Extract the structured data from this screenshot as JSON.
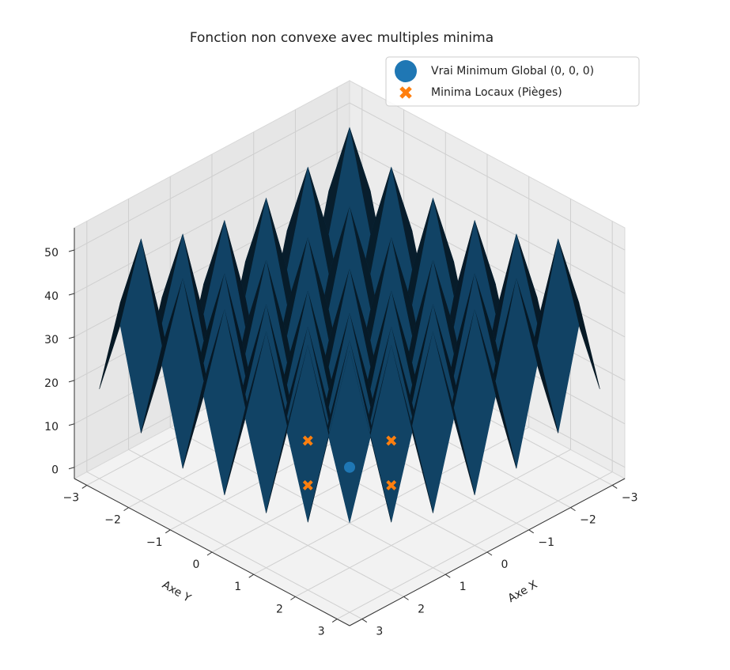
{
  "chart_data": {
    "type": "surface3d",
    "title": "Fonction non convexe avec multiples minima",
    "xlabel": "Axe X",
    "ylabel": "Axe Y",
    "x": [
      -3,
      -2.5,
      -2,
      -1.5,
      -1,
      -0.5,
      0,
      0.5,
      1,
      1.5,
      2,
      2.5,
      3
    ],
    "y": [
      -3,
      -2.5,
      -2,
      -1.5,
      -1,
      -0.5,
      0,
      0.5,
      1,
      1.5,
      2,
      2.5,
      3
    ],
    "z": [
      [
        18,
        35.25,
        13,
        31.25,
        10,
        29.25,
        9,
        29.25,
        10,
        31.25,
        13,
        35.25,
        18
      ],
      [
        35.25,
        52.5,
        30.25,
        48.5,
        27.25,
        46.5,
        26.25,
        46.5,
        27.25,
        48.5,
        30.25,
        52.5,
        35.25
      ],
      [
        13,
        30.25,
        8,
        26.25,
        5,
        24.25,
        4,
        24.25,
        5,
        26.25,
        8,
        30.25,
        13
      ],
      [
        31.25,
        48.5,
        26.25,
        44.5,
        23.25,
        42.5,
        22.25,
        42.5,
        23.25,
        44.5,
        26.25,
        48.5,
        31.25
      ],
      [
        10,
        27.25,
        5,
        23.25,
        2,
        21.25,
        1,
        21.25,
        2,
        23.25,
        5,
        27.25,
        10
      ],
      [
        29.25,
        46.5,
        24.25,
        42.5,
        21.25,
        40.5,
        20.25,
        40.5,
        21.25,
        42.5,
        24.25,
        46.5,
        29.25
      ],
      [
        9,
        26.25,
        4,
        22.25,
        1,
        20.25,
        0,
        20.25,
        1,
        22.25,
        4,
        26.25,
        9
      ],
      [
        29.25,
        46.5,
        24.25,
        42.5,
        21.25,
        40.5,
        20.25,
        40.5,
        21.25,
        42.5,
        24.25,
        46.5,
        29.25
      ],
      [
        10,
        27.25,
        5,
        23.25,
        2,
        21.25,
        1,
        21.25,
        2,
        23.25,
        5,
        27.25,
        10
      ],
      [
        31.25,
        48.5,
        26.25,
        44.5,
        23.25,
        42.5,
        22.25,
        42.5,
        23.25,
        44.5,
        26.25,
        48.5,
        31.25
      ],
      [
        13,
        30.25,
        8,
        26.25,
        5,
        24.25,
        4,
        24.25,
        5,
        26.25,
        8,
        30.25,
        13
      ],
      [
        35.25,
        52.5,
        30.25,
        48.5,
        27.25,
        46.5,
        26.25,
        46.5,
        27.25,
        48.5,
        30.25,
        52.5,
        35.25
      ],
      [
        18,
        35.25,
        13,
        31.25,
        10,
        29.25,
        9,
        29.25,
        10,
        31.25,
        13,
        35.25,
        18
      ]
    ],
    "color": "#1f77b4",
    "points": [
      {
        "name": "Vrai Minimum Global (0, 0, 0)",
        "color": "#1f77b4",
        "marker": "circle",
        "x": [
          0
        ],
        "y": [
          0
        ],
        "z": [
          0
        ]
      },
      {
        "name": "Minima Locaux (Pièges)",
        "color": "#ff7f0e",
        "marker": "x",
        "x": [
          1,
          -1,
          0,
          0
        ],
        "y": [
          0,
          0,
          1,
          -1
        ],
        "z": [
          1,
          1,
          1,
          1
        ]
      }
    ],
    "xlim": [
      -3.3,
      3.3
    ],
    "ylim": [
      -3.3,
      3.3
    ],
    "zlim": [
      -2.6,
      55.1
    ],
    "xticks": [
      {
        "value": -3,
        "label": "−3"
      },
      {
        "value": -2,
        "label": "−2"
      },
      {
        "value": -1,
        "label": "−1"
      },
      0,
      1,
      2,
      3
    ],
    "yticks": [
      {
        "value": -3,
        "label": "−3"
      },
      {
        "value": -2,
        "label": "−2"
      },
      {
        "value": -1,
        "label": "−1"
      },
      0,
      1,
      2,
      3
    ],
    "zticks": [
      0,
      10,
      20,
      30,
      40,
      50
    ],
    "grid": true,
    "legend": "upper right"
  }
}
